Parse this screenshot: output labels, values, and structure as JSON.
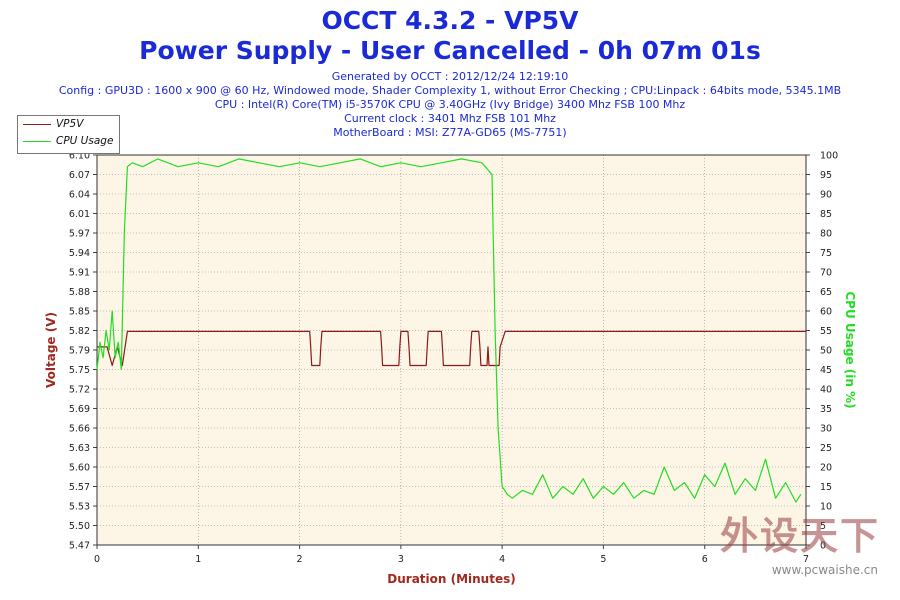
{
  "header": {
    "title": "OCCT 4.3.2 - VP5V",
    "subtitle": "Power Supply - User Cancelled - 0h 07m 01s",
    "info_lines": [
      "Generated by OCCT : 2012/12/24 12:19:10",
      "Config : GPU3D : 1600 x 900 @ 60 Hz, Windowed mode, Shader Complexity 1, without Error Checking ; CPU:Linpack : 64bits mode, 5345.1MB",
      "CPU : Intel(R) Core(TM) i5-3570K CPU @ 3.40GHz (Ivy Bridge) 3400 Mhz FSB 100 Mhz",
      "Current clock : 3401 Mhz FSB 101 Mhz",
      "MotherBoard : MSI: Z77A-GD65 (MS-7751)"
    ]
  },
  "watermark": {
    "text_cn": "外设天下",
    "url": "www.pcwaishe.cn"
  },
  "colors": {
    "vp5v": "#8b1a1a",
    "cpu_usage": "#22dd22",
    "plot_bg": "#fdf6e6",
    "grid": "#8a8a8a",
    "title": "#1a2ad6",
    "axis_label": "#a0281e"
  },
  "chart_data": {
    "type": "line",
    "xlabel": "Duration (Minutes)",
    "ylabel_left": "Voltage (V)",
    "ylabel_right": "CPU Usage (in %)",
    "xlim": [
      0,
      7
    ],
    "ylim_left": [
      5.47,
      6.1
    ],
    "ylim_right": [
      0,
      100
    ],
    "x_ticks": [
      "0",
      "1",
      "2",
      "3",
      "4",
      "5",
      "6",
      "7"
    ],
    "y_left_ticks": [
      "5.47",
      "5.50",
      "5.53",
      "5.57",
      "5.60",
      "5.63",
      "5.66",
      "5.69",
      "5.72",
      "5.75",
      "5.79",
      "5.82",
      "5.85",
      "5.88",
      "5.91",
      "5.94",
      "5.97",
      "6.01",
      "6.04",
      "6.07",
      "6.10"
    ],
    "y_right_ticks": [
      "0",
      "5",
      "10",
      "15",
      "20",
      "25",
      "30",
      "35",
      "40",
      "45",
      "50",
      "55",
      "60",
      "65",
      "70",
      "75",
      "80",
      "85",
      "90",
      "95",
      "100"
    ],
    "grid": true,
    "legend": "top-left",
    "series": [
      {
        "name": "VP5V",
        "axis": "left",
        "x": [
          0,
          0.1,
          0.15,
          0.2,
          0.25,
          0.3,
          2.1,
          2.11,
          2.12,
          2.2,
          2.21,
          2.22,
          2.8,
          2.81,
          2.82,
          2.98,
          2.99,
          3.0,
          3.07,
          3.08,
          3.09,
          3.25,
          3.26,
          3.27,
          3.4,
          3.41,
          3.42,
          3.68,
          3.69,
          3.7,
          3.77,
          3.78,
          3.79,
          3.85,
          3.86,
          3.87,
          3.97,
          3.98,
          4.03,
          7.0
        ],
        "y": [
          5.79,
          5.79,
          5.76,
          5.79,
          5.76,
          5.815,
          5.815,
          5.79,
          5.76,
          5.76,
          5.79,
          5.815,
          5.815,
          5.79,
          5.76,
          5.76,
          5.79,
          5.815,
          5.815,
          5.79,
          5.76,
          5.76,
          5.79,
          5.815,
          5.815,
          5.79,
          5.76,
          5.76,
          5.79,
          5.815,
          5.815,
          5.79,
          5.76,
          5.76,
          5.79,
          5.76,
          5.76,
          5.79,
          5.815,
          5.815
        ]
      },
      {
        "name": "CPU Usage",
        "axis": "right",
        "x": [
          0,
          0.03,
          0.06,
          0.09,
          0.12,
          0.15,
          0.18,
          0.21,
          0.24,
          0.27,
          0.3,
          0.35,
          0.45,
          0.6,
          0.8,
          1.0,
          1.2,
          1.4,
          1.6,
          1.8,
          2.0,
          2.2,
          2.4,
          2.6,
          2.8,
          3.0,
          3.2,
          3.4,
          3.6,
          3.8,
          3.9,
          3.93,
          3.96,
          4.0,
          4.05,
          4.1,
          4.2,
          4.3,
          4.4,
          4.5,
          4.6,
          4.7,
          4.8,
          4.9,
          5.0,
          5.1,
          5.2,
          5.3,
          5.4,
          5.5,
          5.6,
          5.7,
          5.8,
          5.9,
          6.0,
          6.1,
          6.2,
          6.3,
          6.4,
          6.5,
          6.6,
          6.7,
          6.8,
          6.9,
          6.95
        ],
        "y": [
          45,
          52,
          48,
          55,
          50,
          60,
          48,
          52,
          45,
          80,
          97,
          98,
          97,
          99,
          97,
          98,
          97,
          99,
          98,
          97,
          98,
          97,
          98,
          99,
          97,
          98,
          97,
          98,
          99,
          98,
          95,
          55,
          30,
          15,
          13,
          12,
          14,
          13,
          18,
          12,
          15,
          13,
          17,
          12,
          15,
          13,
          16,
          12,
          14,
          13,
          20,
          14,
          16,
          12,
          18,
          15,
          21,
          13,
          17,
          14,
          22,
          12,
          16,
          11,
          13
        ]
      }
    ]
  }
}
